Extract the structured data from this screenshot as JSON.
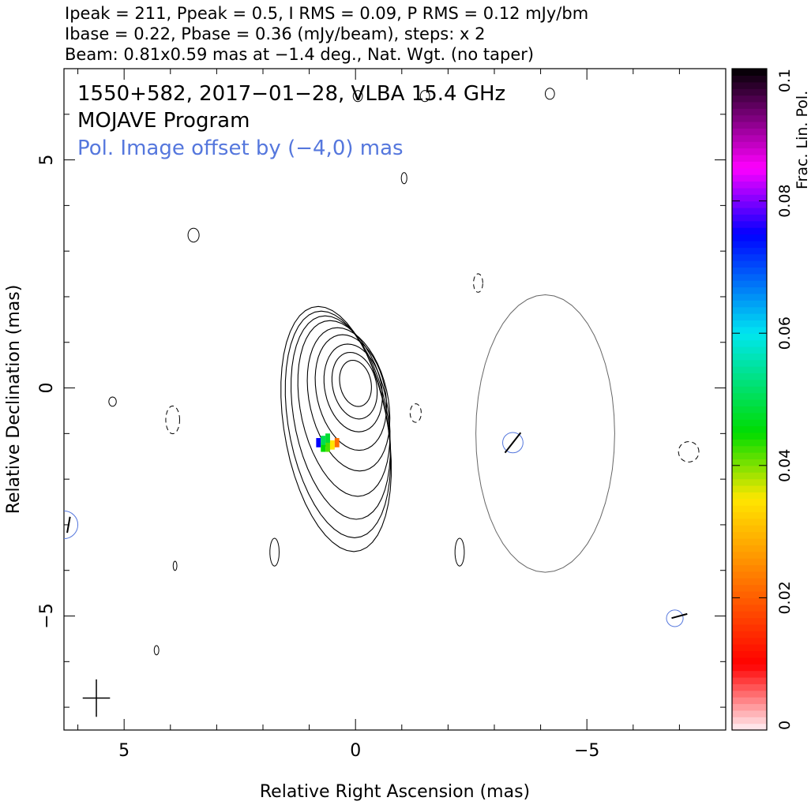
{
  "header": {
    "line1": "Ipeak = 211, Ppeak = 0.5, I RMS = 0.09, P RMS = 0.12 mJy/bm",
    "line2": "Ibase = 0.22, Pbase = 0.36 (mJy/beam), steps: x 2",
    "line3": "Beam: 0.81x0.59 mas at −1.4 deg., Nat. Wgt. (no taper)"
  },
  "annotations": {
    "source": "1550+582, 2017−01−28, VLBA 15.4 GHz",
    "program": "MOJAVE Program",
    "offset_note": "Pol. Image offset by (−4,0) mas"
  },
  "colors": {
    "stokes_i_contour": "#000000",
    "pol_contour": "#666666",
    "vector_circle": "#5577dd",
    "offset_note": "#5577dd"
  },
  "chart_data": {
    "type": "contour",
    "xlabel": "Relative Right Ascension (mas)",
    "ylabel": "Relative Declination (mas)",
    "xlim": [
      6.3,
      -8.0
    ],
    "ylim": [
      -7.5,
      7.0
    ],
    "x_ticks": [
      {
        "value": 5,
        "label": "5"
      },
      {
        "value": 0,
        "label": "0"
      },
      {
        "value": -5,
        "label": "−5"
      }
    ],
    "y_ticks": [
      {
        "value": 5,
        "label": "5"
      },
      {
        "value": 0,
        "label": "0"
      },
      {
        "value": -5,
        "label": "−5"
      }
    ],
    "beam": {
      "major_mas": 0.81,
      "minor_mas": 0.59,
      "pa_deg": -1.4,
      "center": [
        5.6,
        -6.8
      ]
    },
    "stokes_i_contours": [
      {
        "cx": 0.0,
        "cy": 0.1,
        "rx": 0.34,
        "ry": 0.5,
        "skew": 0.05
      },
      {
        "cx": 0.02,
        "cy": 0.05,
        "rx": 0.48,
        "ry": 0.72,
        "skew": 0.08
      },
      {
        "cx": 0.05,
        "cy": 0.0,
        "rx": 0.62,
        "ry": 0.95,
        "skew": 0.1
      },
      {
        "cx": 0.1,
        "cy": -0.1,
        "rx": 0.75,
        "ry": 1.25,
        "skew": 0.15
      },
      {
        "cx": 0.15,
        "cy": -0.25,
        "rx": 0.86,
        "ry": 1.55,
        "skew": 0.2
      },
      {
        "cx": 0.25,
        "cy": -0.45,
        "rx": 0.95,
        "ry": 1.9,
        "skew": 0.25
      },
      {
        "cx": 0.32,
        "cy": -0.65,
        "rx": 1.02,
        "ry": 2.2,
        "skew": 0.28
      },
      {
        "cx": 0.38,
        "cy": -0.8,
        "rx": 1.08,
        "ry": 2.45,
        "skew": 0.3
      },
      {
        "cx": 0.42,
        "cy": -0.9,
        "rx": 1.13,
        "ry": 2.65,
        "skew": 0.32
      }
    ],
    "stokes_i_negative_contours": [
      {
        "cx": 3.95,
        "cy": -0.7,
        "rx": 0.15,
        "ry": 0.3
      },
      {
        "cx": -1.3,
        "cy": -0.55,
        "rx": 0.12,
        "ry": 0.2
      },
      {
        "cx": -2.65,
        "cy": 2.3,
        "rx": 0.1,
        "ry": 0.2
      },
      {
        "cx": -7.2,
        "cy": -1.4,
        "rx": 0.22,
        "ry": 0.22
      }
    ],
    "stokes_i_small_contours": [
      {
        "cx": 3.5,
        "cy": 3.35,
        "rx": 0.12,
        "ry": 0.15
      },
      {
        "cx": 1.75,
        "cy": -3.6,
        "rx": 0.1,
        "ry": 0.3
      },
      {
        "cx": -2.25,
        "cy": -3.6,
        "rx": 0.1,
        "ry": 0.3
      },
      {
        "cx": 5.25,
        "cy": -0.3,
        "rx": 0.08,
        "ry": 0.1
      },
      {
        "cx": 3.9,
        "cy": -3.9,
        "rx": 0.04,
        "ry": 0.1
      },
      {
        "cx": 4.3,
        "cy": -5.75,
        "rx": 0.05,
        "ry": 0.1
      },
      {
        "cx": -1.05,
        "cy": 4.6,
        "rx": 0.06,
        "ry": 0.12
      },
      {
        "cx": -1.5,
        "cy": 6.4,
        "rx": 0.1,
        "ry": 0.12
      },
      {
        "cx": -0.05,
        "cy": 6.4,
        "rx": 0.1,
        "ry": 0.12
      },
      {
        "cx": -4.2,
        "cy": 6.45,
        "rx": 0.1,
        "ry": 0.12
      }
    ],
    "pol_contour": {
      "cx": -4.1,
      "cy": -1.0,
      "rx": 1.5,
      "ry": 3.0
    },
    "frac_pol_pixels": [
      {
        "x": 0.8,
        "y": -1.2,
        "frac": 0.075
      },
      {
        "x": 0.7,
        "y": -1.3,
        "frac": 0.045
      },
      {
        "x": 0.6,
        "y": -1.3,
        "frac": 0.042
      },
      {
        "x": 0.5,
        "y": -1.25,
        "frac": 0.035
      },
      {
        "x": 0.4,
        "y": -1.2,
        "frac": 0.022
      },
      {
        "x": 0.7,
        "y": -1.15,
        "frac": 0.05
      },
      {
        "x": 0.6,
        "y": -1.1,
        "frac": 0.048
      }
    ],
    "pol_vectors": [
      {
        "x": -3.4,
        "y": -1.2,
        "len": 0.55,
        "angle_deg": 52
      },
      {
        "x": 6.2,
        "y": -3.0,
        "len": 0.35,
        "angle_deg": 80
      },
      {
        "x": -7.0,
        "y": -5.0,
        "len": 0.35,
        "angle_deg": 15
      }
    ],
    "vector_circles": [
      {
        "x": -3.4,
        "y": -1.2,
        "r": 0.22
      },
      {
        "x": 6.3,
        "y": -3.0,
        "r": 0.3
      },
      {
        "x": -6.9,
        "y": -5.05,
        "r": 0.18
      }
    ],
    "colorbar": {
      "label": "Frac. Lin. Pol.",
      "min": 0,
      "max": 0.1,
      "ticks": [
        {
          "value": 0,
          "label": "0"
        },
        {
          "value": 0.02,
          "label": "0.02"
        },
        {
          "value": 0.04,
          "label": "0.04"
        },
        {
          "value": 0.06,
          "label": "0.06"
        },
        {
          "value": 0.08,
          "label": "0.08"
        },
        {
          "value": 0.1,
          "label": "0.1"
        }
      ]
    }
  }
}
